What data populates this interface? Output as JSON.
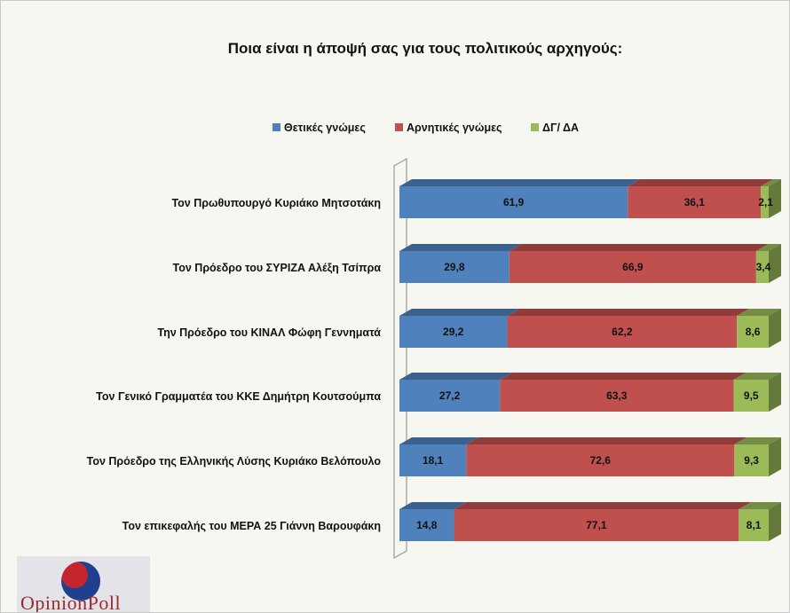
{
  "chart_data": {
    "type": "bar",
    "orientation": "horizontal",
    "stacked": "percent",
    "title": "Ποια είναι η άποψή σας για τους πολιτικούς αρχηγούς:",
    "legend_position": "top",
    "categories": [
      "Τον Πρωθυπουργό Κυριάκο Μητσοτάκη",
      "Τον Πρόεδρο του ΣΥΡΙΖΑ Αλέξη Τσίπρα",
      "Την Πρόεδρο του ΚΙΝΑΛ Φώφη Γεννηματά",
      "Τον Γενικό Γραμματέα του ΚΚΕ Δημήτρη Κουτσούμπα",
      "Τον Πρόεδρο της Ελληνικής Λύσης Κυριάκο Βελόπουλο",
      "Τον επικεφαλής του ΜΕΡΑ 25 Γιάννη Βαρουφάκη"
    ],
    "series": [
      {
        "name": "Θετικές γνώμες",
        "color": "#4f81bd",
        "values": [
          61.9,
          29.8,
          29.2,
          27.2,
          18.1,
          14.8
        ],
        "labels": [
          "61,9",
          "29,8",
          "29,2",
          "27,2",
          "18,1",
          "14,8"
        ]
      },
      {
        "name": "Αρνητικές γνώμες",
        "color": "#c0504d",
        "values": [
          36.1,
          66.9,
          62.2,
          63.3,
          72.6,
          77.1
        ],
        "labels": [
          "36,1",
          "66,9",
          "62,2",
          "63,3",
          "72,6",
          "77,1"
        ]
      },
      {
        "name": "ΔΓ/ ΔΑ",
        "color": "#9bbb59",
        "values": [
          2.1,
          3.4,
          8.6,
          9.5,
          9.3,
          8.1
        ],
        "labels": [
          "2,1",
          "3,4",
          "8,6",
          "9,5",
          "9,3",
          "8,1"
        ]
      }
    ],
    "grid": false
  },
  "logo": {
    "brand": "OpinionPoll"
  }
}
